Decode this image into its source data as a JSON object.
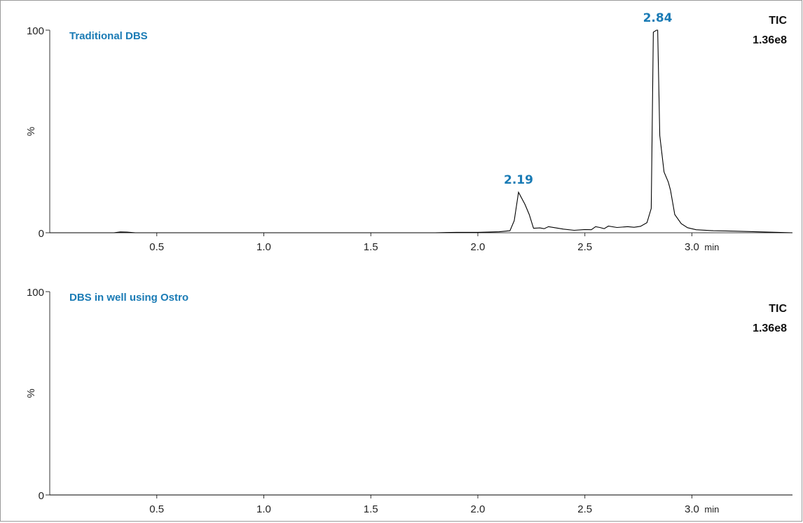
{
  "chart_data": [
    {
      "type": "line",
      "title": "Traditional DBS",
      "tic_label": "TIC",
      "tic_value": "1.36e8",
      "ylabel": "%",
      "y_ticks": [
        "100",
        "0"
      ],
      "x_ticks": [
        {
          "value": 0.5,
          "label": "0.5"
        },
        {
          "value": 1.0,
          "label": "1.0"
        },
        {
          "value": 1.5,
          "label": "1.5"
        },
        {
          "value": 2.0,
          "label": "2.0"
        },
        {
          "value": 2.5,
          "label": "2.5"
        },
        {
          "value": 3.0,
          "label": "3.0"
        }
      ],
      "x_unit": "min",
      "xlim": [
        0.0,
        3.47
      ],
      "ylim": [
        0,
        100
      ],
      "peak_labels": [
        {
          "x": 2.19,
          "y": 20,
          "text": "2.19"
        },
        {
          "x": 2.84,
          "y": 100,
          "text": "2.84"
        }
      ],
      "series": [
        {
          "x": [
            0.0,
            0.3,
            0.33,
            0.36,
            0.4,
            1.0,
            1.8,
            1.9,
            2.0,
            2.1,
            2.15,
            2.17,
            2.19,
            2.22,
            2.24,
            2.26,
            2.29,
            2.31,
            2.33,
            2.36,
            2.4,
            2.45,
            2.5,
            2.53,
            2.55,
            2.57,
            2.59,
            2.61,
            2.65,
            2.7,
            2.73,
            2.76,
            2.79,
            2.81,
            2.82,
            2.835,
            2.84,
            2.85,
            2.87,
            2.89,
            2.9,
            2.92,
            2.95,
            2.98,
            3.02,
            3.1,
            3.2,
            3.3,
            3.4,
            3.47
          ],
          "y": [
            0,
            0,
            0.4,
            0.3,
            0,
            0,
            0,
            0.2,
            0.2,
            0.5,
            1,
            6,
            20,
            14,
            9,
            2.2,
            2.4,
            2,
            3,
            2.5,
            1.8,
            1.2,
            1.6,
            1.5,
            3,
            2.6,
            2,
            3.3,
            2.6,
            3,
            2.7,
            3.2,
            5,
            12,
            99,
            100,
            100,
            48,
            30,
            25,
            21,
            9,
            4.5,
            2.5,
            1.5,
            1,
            0.8,
            0.5,
            0.2,
            0
          ]
        }
      ]
    },
    {
      "type": "line",
      "title": "DBS in well using Ostro",
      "tic_label": "TIC",
      "tic_value": "1.36e8",
      "ylabel": "%",
      "y_ticks": [
        "100",
        "0"
      ],
      "x_ticks": [
        {
          "value": 0.5,
          "label": "0.5"
        },
        {
          "value": 1.0,
          "label": "1.0"
        },
        {
          "value": 1.5,
          "label": "1.5"
        },
        {
          "value": 2.0,
          "label": "2.0"
        },
        {
          "value": 2.5,
          "label": "2.5"
        },
        {
          "value": 3.0,
          "label": "3.0"
        }
      ],
      "x_unit": "min",
      "xlim": [
        0.0,
        3.47
      ],
      "ylim": [
        0,
        100
      ],
      "peak_labels": [],
      "series": [
        {
          "x": [
            0.0,
            0.5,
            1.0,
            1.5,
            2.0,
            2.5,
            3.0,
            3.47
          ],
          "y": [
            0,
            0,
            0,
            0,
            0,
            0,
            0,
            0
          ]
        }
      ]
    }
  ]
}
